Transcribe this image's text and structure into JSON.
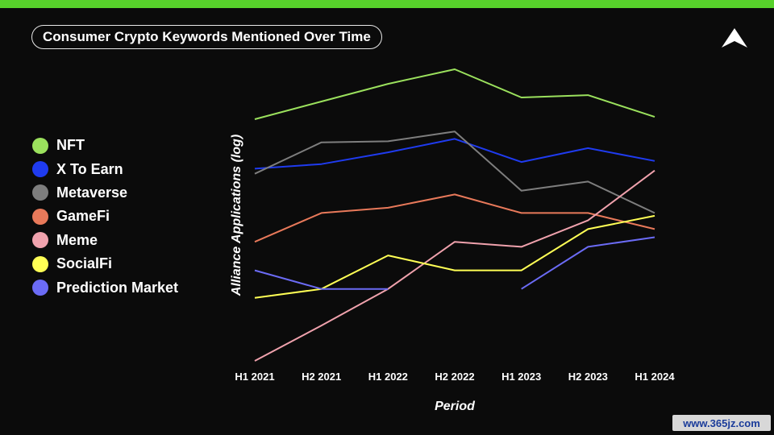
{
  "header": {
    "title": "Consumer Crypto Keywords Mentioned Over Time"
  },
  "logo": {
    "icon": "triangle-logo-icon"
  },
  "watermark": {
    "text": "www.365jz.com"
  },
  "colors": {
    "accent_bar": "#57d12b",
    "background": "#0b0b0b"
  },
  "chart_data": {
    "type": "line",
    "title": "Consumer Crypto Keywords Mentioned Over Time",
    "xlabel": "Period",
    "ylabel": "Alliance Applications (log)",
    "y_scale": "log",
    "y_ticks_shown": false,
    "grid": false,
    "legend_position": "left",
    "categories": [
      "H1 2021",
      "H2 2021",
      "H1 2022",
      "H2 2022",
      "H1 2023",
      "H2 2023",
      "H1 2024"
    ],
    "series": [
      {
        "name": "NFT",
        "color": "#9be15d",
        "values": [
          225,
          315,
          440,
          580,
          340,
          355,
          235
        ]
      },
      {
        "name": "X To Earn",
        "color": "#1f3bef",
        "values": [
          88,
          96,
          120,
          155,
          100,
          130,
          102
        ]
      },
      {
        "name": "Metaverse",
        "color": "#7e7e7e",
        "values": [
          80,
          145,
          148,
          178,
          58,
          69,
          38
        ]
      },
      {
        "name": "GameFi",
        "color": "#e8795a",
        "values": [
          22,
          38,
          42,
          54,
          38,
          38,
          28
        ]
      },
      {
        "name": "Meme",
        "color": "#f0a2ad",
        "values": [
          2.3,
          4.5,
          9,
          22,
          20,
          33,
          85
        ]
      },
      {
        "name": "SocialFi",
        "color": "#ffff55",
        "values": [
          7.6,
          9,
          17,
          12.8,
          12.8,
          28,
          36
        ]
      },
      {
        "name": "Prediction Market",
        "color": "#6b6bf5",
        "values": [
          12.8,
          9,
          9,
          null,
          9,
          20,
          24
        ]
      }
    ]
  }
}
